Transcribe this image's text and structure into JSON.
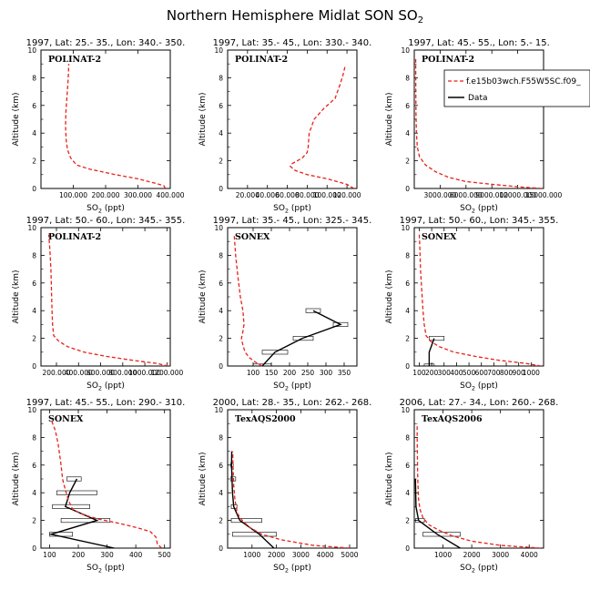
{
  "figure": {
    "title": "Northern Hemisphere Midlat SON SO",
    "title_sub": "2"
  },
  "legend": {
    "model_label": "f.e15b03wch.F55W5SC.f09_",
    "obs_label": "Data"
  },
  "colors": {
    "model": "#e8211b",
    "obs": "#000000",
    "axis": "#000000"
  },
  "chart_data": [
    {
      "type": "line",
      "title": "1997, Lat: 25.- 35., Lon: 340.- 350.",
      "campaign": "POLINAT-2",
      "xlabel": "SO2 (ppt)",
      "ylabel": "Altitude (km)",
      "xlim": [
        0,
        400
      ],
      "ylim": [
        0,
        10
      ],
      "xticks": [
        100,
        200,
        300,
        400
      ],
      "xticklabels": [
        "100.000",
        "200.000",
        "300.000",
        "400.000"
      ],
      "yticks": [
        0,
        2,
        4,
        6,
        8,
        10
      ],
      "model": [
        [
          385,
          0
        ],
        [
          380,
          0.2
        ],
        [
          350,
          0.4
        ],
        [
          300,
          0.7
        ],
        [
          230,
          1.0
        ],
        [
          150,
          1.4
        ],
        [
          110,
          1.7
        ],
        [
          92,
          2.2
        ],
        [
          82,
          2.8
        ],
        [
          78,
          3.5
        ],
        [
          76,
          4.5
        ],
        [
          77,
          5.5
        ],
        [
          80,
          6.5
        ],
        [
          83,
          7.5
        ],
        [
          85,
          8.3
        ],
        [
          86,
          9.0
        ]
      ],
      "obs": [],
      "obs_bars": []
    },
    {
      "type": "line",
      "title": "1997, Lat: 35.- 45., Lon: 330.- 340.",
      "campaign": "POLINAT-2",
      "xlabel": "SO2 (ppt)",
      "ylabel": "Altitude (km)",
      "xlim": [
        0,
        130
      ],
      "ylim": [
        0,
        10
      ],
      "xticks": [
        20,
        40,
        60,
        80,
        100,
        120
      ],
      "xticklabels": [
        "20.000",
        "40.000",
        "60.000",
        "80.000",
        "100.000",
        "120.000"
      ],
      "yticks": [
        0,
        2,
        4,
        6,
        8,
        10
      ],
      "model": [
        [
          127,
          0
        ],
        [
          120,
          0.3
        ],
        [
          100,
          0.7
        ],
        [
          80,
          1.0
        ],
        [
          68,
          1.3
        ],
        [
          63,
          1.6
        ],
        [
          65,
          1.8
        ],
        [
          75,
          2.2
        ],
        [
          80,
          2.6
        ],
        [
          81,
          3.0
        ],
        [
          82,
          4.0
        ],
        [
          87,
          5.0
        ],
        [
          97,
          5.8
        ],
        [
          108,
          6.5
        ],
        [
          113,
          7.5
        ],
        [
          116,
          8.2
        ],
        [
          118,
          8.8
        ]
      ],
      "obs": [],
      "obs_bars": []
    },
    {
      "type": "line",
      "title": "1997, Lat: 45.- 55., Lon: 5.- 15.",
      "campaign": "POLINAT-2",
      "xlabel": "SO2 (ppt)",
      "ylabel": "Altitude (km)",
      "xlim": [
        0,
        15000
      ],
      "ylim": [
        0,
        10
      ],
      "xticks": [
        3000,
        6000,
        9000,
        12000,
        15000
      ],
      "xticklabels": [
        "3000.000",
        "6000.000",
        "9000.000",
        "12000.000",
        "15000.000"
      ],
      "yticks": [
        0,
        2,
        4,
        6,
        8,
        10
      ],
      "model": [
        [
          14800,
          0
        ],
        [
          12500,
          0.1
        ],
        [
          9000,
          0.3
        ],
        [
          6000,
          0.5
        ],
        [
          4000,
          0.8
        ],
        [
          2500,
          1.2
        ],
        [
          1300,
          1.7
        ],
        [
          600,
          2.3
        ],
        [
          350,
          3.0
        ],
        [
          250,
          4.0
        ],
        [
          200,
          5.5
        ],
        [
          180,
          7.0
        ],
        [
          170,
          8.5
        ],
        [
          165,
          9.5
        ]
      ],
      "obs": [],
      "obs_bars": []
    },
    {
      "type": "line",
      "title": "1997, Lat: 50.- 60., Lon: 345.- 355.",
      "campaign": "POLINAT-2",
      "xlabel": "SO2 (ppt)",
      "ylabel": "Altitude (km)",
      "xlim": [
        60,
        1230
      ],
      "ylim": [
        0,
        10
      ],
      "xticks": [
        200,
        400,
        600,
        800,
        1000,
        1200
      ],
      "xticklabels": [
        "200.000",
        "400.000",
        "600.000",
        "800.000",
        "1000.000",
        "1200.000"
      ],
      "yticks": [
        0,
        2,
        4,
        6,
        8,
        10
      ],
      "model": [
        [
          1210,
          0
        ],
        [
          1100,
          0.2
        ],
        [
          900,
          0.4
        ],
        [
          650,
          0.7
        ],
        [
          450,
          1.0
        ],
        [
          300,
          1.4
        ],
        [
          220,
          1.8
        ],
        [
          175,
          2.2
        ],
        [
          165,
          3.0
        ],
        [
          160,
          4.0
        ],
        [
          155,
          5.5
        ],
        [
          150,
          7.0
        ],
        [
          140,
          8.5
        ],
        [
          130,
          9.5
        ]
      ],
      "obs": [],
      "obs_bars": []
    },
    {
      "type": "line",
      "title": "1997, Lat: 35.- 45., Lon: 325.- 345.",
      "campaign": "SONEX",
      "xlabel": "SO2 (ppt)",
      "ylabel": "Altitude (km)",
      "xlim": [
        30,
        385
      ],
      "ylim": [
        0,
        10
      ],
      "xticks": [
        100,
        150,
        200,
        250,
        300,
        350
      ],
      "xticklabels": [
        "100",
        "150",
        "200",
        "250",
        "300",
        "350"
      ],
      "yticks": [
        0,
        2,
        4,
        6,
        8,
        10
      ],
      "model": [
        [
          125,
          0
        ],
        [
          105,
          0.3
        ],
        [
          90,
          0.6
        ],
        [
          78,
          1.0
        ],
        [
          72,
          1.5
        ],
        [
          68,
          2.0
        ],
        [
          72,
          2.5
        ],
        [
          75,
          3.0
        ],
        [
          72,
          4.0
        ],
        [
          65,
          5.0
        ],
        [
          58,
          6.5
        ],
        [
          52,
          8.0
        ],
        [
          48,
          9.5
        ]
      ],
      "obs": [
        [
          125,
          0
        ],
        [
          160,
          1.0
        ],
        [
          235,
          2.0
        ],
        [
          340,
          3.0
        ],
        [
          265,
          4.0
        ]
      ],
      "obs_bars": [
        [
          100,
          150,
          0
        ],
        [
          125,
          195,
          1.0
        ],
        [
          210,
          265,
          2.0
        ],
        [
          320,
          360,
          3.0
        ],
        [
          245,
          285,
          4.0
        ]
      ]
    },
    {
      "type": "line",
      "title": "1997, Lat: 50.- 60., Lon: 345.- 355.",
      "campaign": "SONEX",
      "xlabel": "SO2 (ppt)",
      "ylabel": "Altitude (km)",
      "xlim": [
        60,
        1100
      ],
      "ylim": [
        0,
        10
      ],
      "xticks": [
        100,
        200,
        300,
        400,
        500,
        600,
        700,
        800,
        900,
        1000
      ],
      "xticklabels": [
        "100",
        "200",
        "300",
        "400",
        "500",
        "600",
        "700",
        "800",
        "900",
        "1000"
      ],
      "yticks": [
        0,
        2,
        4,
        6,
        8,
        10
      ],
      "model": [
        [
          1080,
          0
        ],
        [
          950,
          0.2
        ],
        [
          750,
          0.4
        ],
        [
          550,
          0.7
        ],
        [
          380,
          1.0
        ],
        [
          260,
          1.4
        ],
        [
          190,
          1.8
        ],
        [
          155,
          2.2
        ],
        [
          140,
          3.0
        ],
        [
          130,
          4.0
        ],
        [
          120,
          5.5
        ],
        [
          110,
          7.0
        ],
        [
          105,
          8.5
        ],
        [
          100,
          9.5
        ]
      ],
      "obs": [
        [
          180,
          0
        ],
        [
          180,
          1.0
        ],
        [
          220,
          2.0
        ]
      ],
      "obs_bars": [
        [
          140,
          220,
          0
        ],
        [
          180,
          300,
          2.0
        ]
      ]
    },
    {
      "type": "line",
      "title": "1997, Lat: 45.- 55., Lon: 290.- 310.",
      "campaign": "SONEX",
      "xlabel": "SO2 (ppt)",
      "ylabel": "Altitude (km)",
      "xlim": [
        70,
        520
      ],
      "ylim": [
        0,
        10
      ],
      "xticks": [
        100,
        200,
        300,
        400,
        500
      ],
      "xticklabels": [
        "100",
        "200",
        "300",
        "400",
        "500"
      ],
      "yticks": [
        0,
        2,
        4,
        6,
        8,
        10
      ],
      "model": [
        [
          490,
          0
        ],
        [
          475,
          0.3
        ],
        [
          470,
          0.8
        ],
        [
          450,
          1.2
        ],
        [
          400,
          1.5
        ],
        [
          340,
          1.8
        ],
        [
          270,
          2.1
        ],
        [
          220,
          2.4
        ],
        [
          180,
          2.8
        ],
        [
          165,
          3.5
        ],
        [
          155,
          4.2
        ],
        [
          145,
          5.0
        ],
        [
          140,
          6.0
        ],
        [
          130,
          7.5
        ],
        [
          120,
          8.5
        ],
        [
          105,
          9.3
        ]
      ],
      "obs": [
        [
          325,
          0
        ],
        [
          105,
          1.0
        ],
        [
          265,
          2.0
        ],
        [
          155,
          3.0
        ],
        [
          170,
          4.0
        ],
        [
          195,
          5.0
        ]
      ],
      "obs_bars": [
        [
          100,
          180,
          1.0
        ],
        [
          140,
          310,
          2.0
        ],
        [
          110,
          240,
          3.0
        ],
        [
          125,
          265,
          4.0
        ],
        [
          160,
          210,
          5.0
        ]
      ]
    },
    {
      "type": "line",
      "title": "2000, Lat: 28.- 35., Lon: 262.- 268.",
      "campaign": "TexAQS2000",
      "xlabel": "SO2 (ppt)",
      "ylabel": "Altitude (km)",
      "xlim": [
        0,
        5300
      ],
      "ylim": [
        0,
        10
      ],
      "xticks": [
        1000,
        2000,
        3000,
        4000,
        5000
      ],
      "xticklabels": [
        "1000",
        "2000",
        "3000",
        "4000",
        "5000"
      ],
      "yticks": [
        0,
        2,
        4,
        6,
        8,
        10
      ],
      "model": [
        [
          5000,
          0
        ],
        [
          3500,
          0.2
        ],
        [
          2200,
          0.6
        ],
        [
          1400,
          1.0
        ],
        [
          900,
          1.5
        ],
        [
          600,
          2.0
        ],
        [
          400,
          2.5
        ],
        [
          300,
          3.5
        ],
        [
          250,
          4.5
        ],
        [
          220,
          6.0
        ],
        [
          210,
          7.0
        ]
      ],
      "obs": [
        [
          1900,
          0
        ],
        [
          1300,
          1.0
        ],
        [
          500,
          2.0
        ],
        [
          250,
          3.0
        ],
        [
          200,
          4.0
        ],
        [
          180,
          5.0
        ],
        [
          160,
          6.0
        ],
        [
          170,
          7.0
        ]
      ],
      "obs_bars": [
        [
          200,
          2000,
          1.0
        ],
        [
          150,
          1400,
          2.0
        ],
        [
          150,
          380,
          3.0
        ],
        [
          120,
          330,
          5.0
        ],
        [
          130,
          230,
          6.0
        ]
      ]
    },
    {
      "type": "line",
      "title": "2006, Lat: 27.- 34., Lon: 260.- 268.",
      "campaign": "TexAQS2006",
      "xlabel": "SO2 (ppt)",
      "ylabel": "Altitude (km)",
      "xlim": [
        0,
        4500
      ],
      "ylim": [
        0,
        10
      ],
      "xticks": [
        1000,
        2000,
        3000,
        4000
      ],
      "xticklabels": [
        "1000",
        "2000",
        "3000",
        "4000"
      ],
      "yticks": [
        0,
        2,
        4,
        6,
        8,
        10
      ],
      "model": [
        [
          4400,
          0
        ],
        [
          3000,
          0.2
        ],
        [
          2000,
          0.5
        ],
        [
          1300,
          0.9
        ],
        [
          850,
          1.3
        ],
        [
          500,
          1.7
        ],
        [
          300,
          2.2
        ],
        [
          200,
          2.8
        ],
        [
          150,
          3.5
        ],
        [
          120,
          5.0
        ],
        [
          110,
          6.5
        ],
        [
          100,
          8.0
        ],
        [
          100,
          9.0
        ]
      ],
      "obs": [
        [
          1600,
          0
        ],
        [
          800,
          1.0
        ],
        [
          150,
          2.0
        ],
        [
          60,
          3.0
        ],
        [
          50,
          4.0
        ],
        [
          40,
          5.0
        ]
      ],
      "obs_bars": [
        [
          300,
          1600,
          1.0
        ],
        [
          50,
          350,
          2.0
        ]
      ]
    }
  ]
}
